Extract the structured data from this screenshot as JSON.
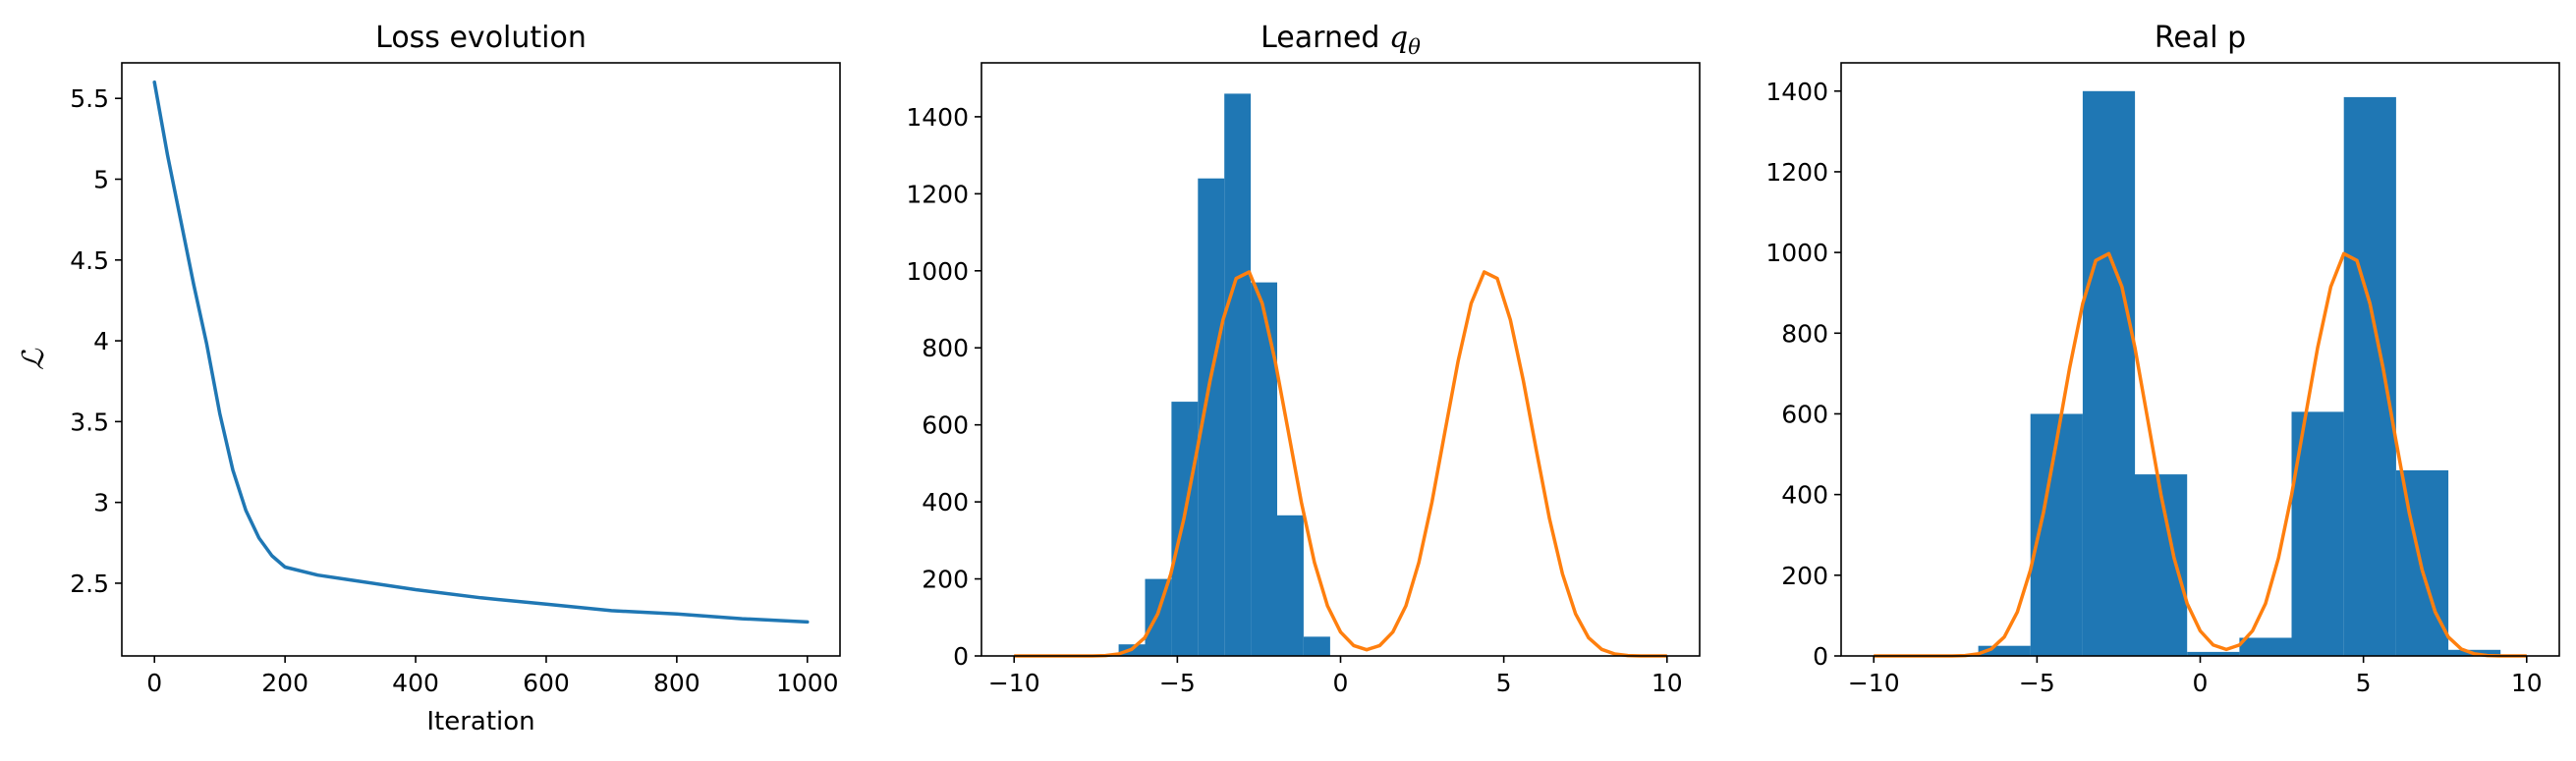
{
  "chart_data": [
    {
      "type": "line",
      "title": "Loss evolution",
      "xlabel": "Iteration",
      "ylabel": "ℒ",
      "xlim": [
        -50,
        1050
      ],
      "ylim": [
        2.05,
        5.72
      ],
      "xticks": [
        0,
        200,
        400,
        600,
        800,
        1000
      ],
      "yticks": [
        2.5,
        3.0,
        3.5,
        4.0,
        4.5,
        5.0,
        5.5
      ],
      "grid": false,
      "color": "#1f77b4",
      "series": [
        {
          "x": [
            0,
            20,
            40,
            60,
            80,
            100,
            120,
            140,
            160,
            180,
            200,
            250,
            300,
            400,
            500,
            600,
            700,
            800,
            900,
            1000
          ],
          "values": [
            5.6,
            5.15,
            4.75,
            4.35,
            3.98,
            3.55,
            3.2,
            2.95,
            2.78,
            2.67,
            2.6,
            2.55,
            2.52,
            2.46,
            2.41,
            2.37,
            2.33,
            2.31,
            2.28,
            2.26
          ]
        }
      ]
    },
    {
      "type": "bar",
      "title": "Learned",
      "title_math": "q",
      "title_sub": "θ",
      "xlim": [
        -11,
        11
      ],
      "ylim": [
        0,
        1540
      ],
      "xticks": [
        -10,
        -5,
        0,
        5,
        10
      ],
      "yticks": [
        0,
        200,
        400,
        600,
        800,
        1000,
        1200,
        1400
      ],
      "grid": false,
      "colors": {
        "bars": "#1f77b4",
        "curve": "#ff7f0e"
      },
      "bins": [
        {
          "x0": -6.8,
          "x1": -5.99,
          "value": 30
        },
        {
          "x0": -5.99,
          "x1": -5.18,
          "value": 200
        },
        {
          "x0": -5.18,
          "x1": -4.37,
          "value": 660
        },
        {
          "x0": -4.37,
          "x1": -3.56,
          "value": 1240
        },
        {
          "x0": -3.56,
          "x1": -2.75,
          "value": 1460
        },
        {
          "x0": -2.75,
          "x1": -1.94,
          "value": 970
        },
        {
          "x0": -1.94,
          "x1": -1.13,
          "value": 365
        },
        {
          "x0": -1.13,
          "x1": -0.32,
          "value": 50
        }
      ],
      "curve": {
        "x": [
          -10,
          -9.6,
          -9.2,
          -8.8,
          -8.4,
          -8.0,
          -7.6,
          -7.2,
          -6.8,
          -6.4,
          -6.0,
          -5.6,
          -5.2,
          -4.8,
          -4.4,
          -4.0,
          -3.6,
          -3.2,
          -2.8,
          -2.4,
          -2.0,
          -1.6,
          -1.2,
          -0.8,
          -0.4,
          0.0,
          0.4,
          0.8,
          1.2,
          1.6,
          2.0,
          2.4,
          2.8,
          3.2,
          3.6,
          4.0,
          4.4,
          4.8,
          5.2,
          5.6,
          6.0,
          6.4,
          6.8,
          7.2,
          7.6,
          8.0,
          8.4,
          8.8,
          9.2,
          9.6,
          10.0
        ],
        "values": [
          0,
          0,
          0,
          0,
          0,
          0,
          0,
          1,
          5,
          17,
          47,
          109,
          213,
          356,
          532,
          714,
          873,
          980,
          997,
          915,
          765,
          583,
          399,
          243,
          130,
          62,
          27,
          16,
          27,
          62,
          130,
          243,
          399,
          583,
          765,
          915,
          997,
          980,
          873,
          714,
          532,
          356,
          213,
          109,
          47,
          17,
          5,
          1,
          0,
          0,
          0
        ]
      }
    },
    {
      "type": "bar",
      "title": "Real p",
      "xlim": [
        -11,
        11
      ],
      "ylim": [
        0,
        1470
      ],
      "xticks": [
        -10,
        -5,
        0,
        5,
        10
      ],
      "yticks": [
        0,
        200,
        400,
        600,
        800,
        1000,
        1200,
        1400
      ],
      "grid": false,
      "colors": {
        "bars": "#1f77b4",
        "curve": "#ff7f0e"
      },
      "bins": [
        {
          "x0": -6.8,
          "x1": -5.2,
          "value": 25
        },
        {
          "x0": -5.2,
          "x1": -3.6,
          "value": 600
        },
        {
          "x0": -3.6,
          "x1": -2.0,
          "value": 1400
        },
        {
          "x0": -2.0,
          "x1": -0.4,
          "value": 450
        },
        {
          "x0": -0.4,
          "x1": 1.2,
          "value": 10
        },
        {
          "x0": 1.2,
          "x1": 2.8,
          "value": 45
        },
        {
          "x0": 2.8,
          "x1": 4.4,
          "value": 605
        },
        {
          "x0": 4.4,
          "x1": 6.0,
          "value": 1385
        },
        {
          "x0": 6.0,
          "x1": 7.6,
          "value": 460
        },
        {
          "x0": 7.6,
          "x1": 9.2,
          "value": 15
        }
      ],
      "curve": {
        "x": [
          -10,
          -9.6,
          -9.2,
          -8.8,
          -8.4,
          -8.0,
          -7.6,
          -7.2,
          -6.8,
          -6.4,
          -6.0,
          -5.6,
          -5.2,
          -4.8,
          -4.4,
          -4.0,
          -3.6,
          -3.2,
          -2.8,
          -2.4,
          -2.0,
          -1.6,
          -1.2,
          -0.8,
          -0.4,
          0.0,
          0.4,
          0.8,
          1.2,
          1.6,
          2.0,
          2.4,
          2.8,
          3.2,
          3.6,
          4.0,
          4.4,
          4.8,
          5.2,
          5.6,
          6.0,
          6.4,
          6.8,
          7.2,
          7.6,
          8.0,
          8.4,
          8.8,
          9.2,
          9.6,
          10.0
        ],
        "values": [
          0,
          0,
          0,
          0,
          0,
          0,
          0,
          1,
          5,
          17,
          47,
          109,
          213,
          356,
          532,
          714,
          873,
          980,
          997,
          915,
          765,
          583,
          399,
          243,
          130,
          62,
          27,
          16,
          27,
          62,
          130,
          243,
          399,
          583,
          765,
          915,
          997,
          980,
          873,
          714,
          532,
          356,
          213,
          109,
          47,
          17,
          5,
          1,
          0,
          0,
          0
        ]
      }
    }
  ]
}
